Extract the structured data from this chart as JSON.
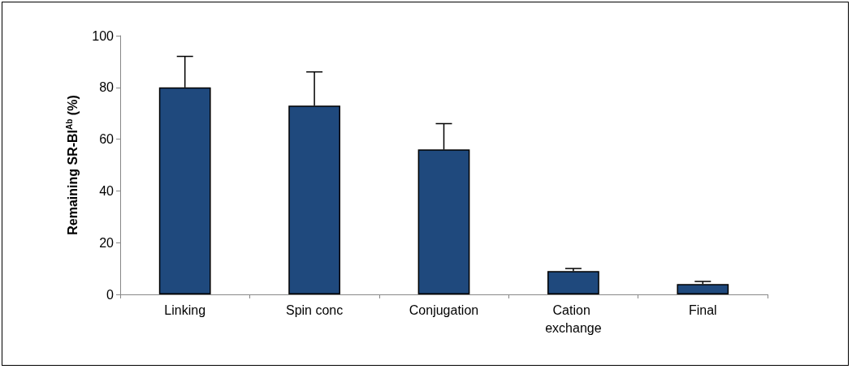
{
  "chart_data": {
    "type": "bar",
    "ylabel": "Remaining SR-BI$^{Ab}$ (%)",
    "categories": [
      "Linking",
      "Spin conc",
      "Conjugation",
      "Cation exchange",
      "Final"
    ],
    "values": [
      80,
      73,
      56,
      9,
      4
    ],
    "errors": [
      [
        80,
        92
      ],
      [
        73,
        86
      ],
      [
        56,
        66
      ],
      [
        9,
        10
      ],
      [
        4,
        5
      ]
    ],
    "color": "#1f497d",
    "ylim": [
      0,
      100
    ],
    "yticks": [
      0,
      20,
      40,
      60,
      80,
      100
    ],
    "grid": false
  }
}
